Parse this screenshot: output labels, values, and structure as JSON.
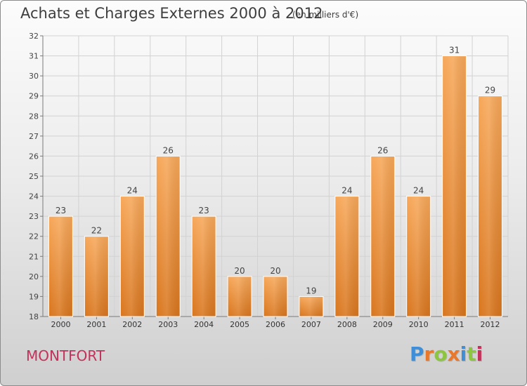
{
  "title": "Achats et Charges Externes 2000 à 2012",
  "subtitle": "(en milliers d'€)",
  "place": "MONTFORT",
  "logo": {
    "letters": [
      "P",
      "r",
      "o",
      "x",
      "i",
      "t",
      "i"
    ],
    "colors": [
      "#3f8fd8",
      "#e8782a",
      "#8cc63f",
      "#e8782a",
      "#3f8fd8",
      "#8cc63f",
      "#c2325a"
    ]
  },
  "colors": {
    "bar_top": "#f7a85a",
    "bar_bottom": "#d9761e",
    "title": "#3e3e3e",
    "place": "#c2325a"
  },
  "chart_data": {
    "type": "bar",
    "categories": [
      "2000",
      "2001",
      "2002",
      "2003",
      "2004",
      "2005",
      "2006",
      "2007",
      "2008",
      "2009",
      "2010",
      "2011",
      "2012"
    ],
    "values": [
      23,
      22,
      24,
      26,
      23,
      20,
      20,
      19,
      24,
      26,
      24,
      31,
      29
    ],
    "data_labels": [
      "23",
      "22",
      "24",
      "26",
      "23",
      "20",
      "20",
      "19",
      "24",
      "26",
      "24",
      "31",
      "29"
    ],
    "y_ticks": [
      "18",
      "19",
      "20",
      "21",
      "22",
      "23",
      "24",
      "25",
      "26",
      "27",
      "28",
      "29",
      "30",
      "31",
      "32"
    ],
    "ylim": [
      18,
      32
    ],
    "grid": true,
    "xlabel": "",
    "ylabel": ""
  }
}
